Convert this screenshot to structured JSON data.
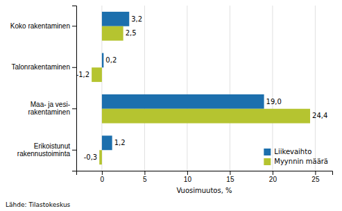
{
  "chart_data": {
    "type": "bar",
    "orientation": "horizontal",
    "categories": [
      "Koko rakentaminen",
      "Talonrakentaminen",
      "Maa- ja vesi-\nrakentaminen",
      "Erikoistunut\nrakennustoiminta"
    ],
    "series": [
      {
        "name": "Liikevaihto",
        "color": "#1c6fad",
        "values": [
          3.2,
          0.2,
          19.0,
          1.2
        ],
        "value_labels": [
          "3,2",
          "0,2",
          "19,0",
          "1,2"
        ]
      },
      {
        "name": "Myynnin määrä",
        "color": "#b5c430",
        "values": [
          2.5,
          -1.2,
          24.4,
          -0.3
        ],
        "value_labels": [
          "2,5",
          "-1,2",
          "24,4",
          "-0,3"
        ]
      }
    ],
    "xlim": [
      -3,
      27
    ],
    "xticks": [
      0,
      5,
      10,
      15,
      20,
      25
    ],
    "xlabel": "Vuosimuutos, %",
    "grid": true,
    "legend": "lower right",
    "data_labels": true,
    "annotations": [
      "Lähde: Tilastokeskus"
    ]
  }
}
